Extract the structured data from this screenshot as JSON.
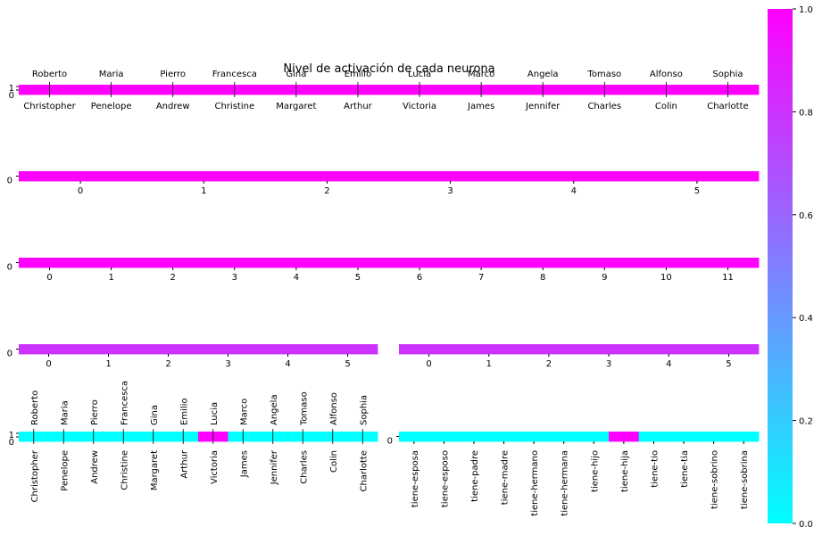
{
  "chart_data": {
    "type": "heatmap",
    "title": "Nivel de activación de cada neurona",
    "colormap": "cool",
    "color_min": "#00ffff",
    "color_max": "#ff00ff",
    "colorbar": {
      "min": 0.0,
      "max": 1.0,
      "ticks": [
        "0.0",
        "0.2",
        "0.4",
        "0.6",
        "0.8",
        "1.0"
      ]
    },
    "people_top": [
      "Roberto",
      "Maria",
      "Pierro",
      "Francesca",
      "Gina",
      "Emilio",
      "Lucia",
      "Marco",
      "Angela",
      "Tomaso",
      "Alfonso",
      "Sophia"
    ],
    "people_bottom": [
      "Christopher",
      "Penelope",
      "Andrew",
      "Christine",
      "Margaret",
      "Arthur",
      "Victoria",
      "James",
      "Jennifer",
      "Charles",
      "Colin",
      "Charlotte"
    ],
    "relations": [
      "tiene-esposa",
      "tiene-esposo",
      "tiene-padre",
      "tiene-madre",
      "tiene-hermano",
      "tiene-hermana",
      "tiene-hijo",
      "tiene-hija",
      "tiene-tio",
      "tiene-tia",
      "tiene-sobrino",
      "tiene-sobrina"
    ],
    "panels": [
      {
        "id": "input-people",
        "row_ticks": [
          "1",
          "0"
        ],
        "values": [
          [
            1,
            1,
            1,
            1,
            1,
            1,
            1,
            1,
            1,
            1,
            1,
            1,
            1,
            1,
            1,
            1,
            1,
            1,
            1,
            1,
            1,
            1,
            1,
            1
          ]
        ]
      },
      {
        "id": "hidden-6",
        "row_ticks": [
          "0"
        ],
        "col_ticks": [
          "0",
          "1",
          "2",
          "3",
          "4",
          "5"
        ],
        "values": [
          [
            1,
            1,
            1,
            1,
            1,
            1
          ]
        ]
      },
      {
        "id": "hidden-12",
        "row_ticks": [
          "0"
        ],
        "col_ticks": [
          "0",
          "1",
          "2",
          "3",
          "4",
          "5",
          "6",
          "7",
          "8",
          "9",
          "10",
          "11"
        ],
        "values": [
          [
            1,
            1,
            1,
            1,
            1,
            1,
            1,
            1,
            1,
            1,
            1,
            1
          ]
        ]
      },
      {
        "id": "hidden-6-left",
        "row_ticks": [
          "0"
        ],
        "col_ticks": [
          "0",
          "1",
          "2",
          "3",
          "4",
          "5"
        ],
        "values": [
          [
            0.8,
            0.8,
            0.8,
            0.8,
            0.8,
            0.8
          ]
        ]
      },
      {
        "id": "hidden-6-right",
        "col_ticks": [
          "0",
          "1",
          "2",
          "3",
          "4",
          "5"
        ],
        "values": [
          [
            0.8,
            0.8,
            0.8,
            0.8,
            0.8,
            0.8
          ]
        ]
      },
      {
        "id": "output-people",
        "row_ticks": [
          "1",
          "0"
        ],
        "values": [
          [
            0,
            0,
            0,
            0,
            0,
            0,
            1,
            0,
            0,
            0,
            0,
            0
          ],
          [
            0,
            0,
            0,
            0,
            0,
            0,
            1,
            0,
            0,
            0,
            0,
            0
          ]
        ]
      },
      {
        "id": "output-relations",
        "row_ticks": [
          "0"
        ],
        "values": [
          [
            0,
            0,
            0,
            0,
            0,
            0,
            0,
            1,
            0,
            0,
            0,
            0
          ]
        ]
      }
    ]
  }
}
